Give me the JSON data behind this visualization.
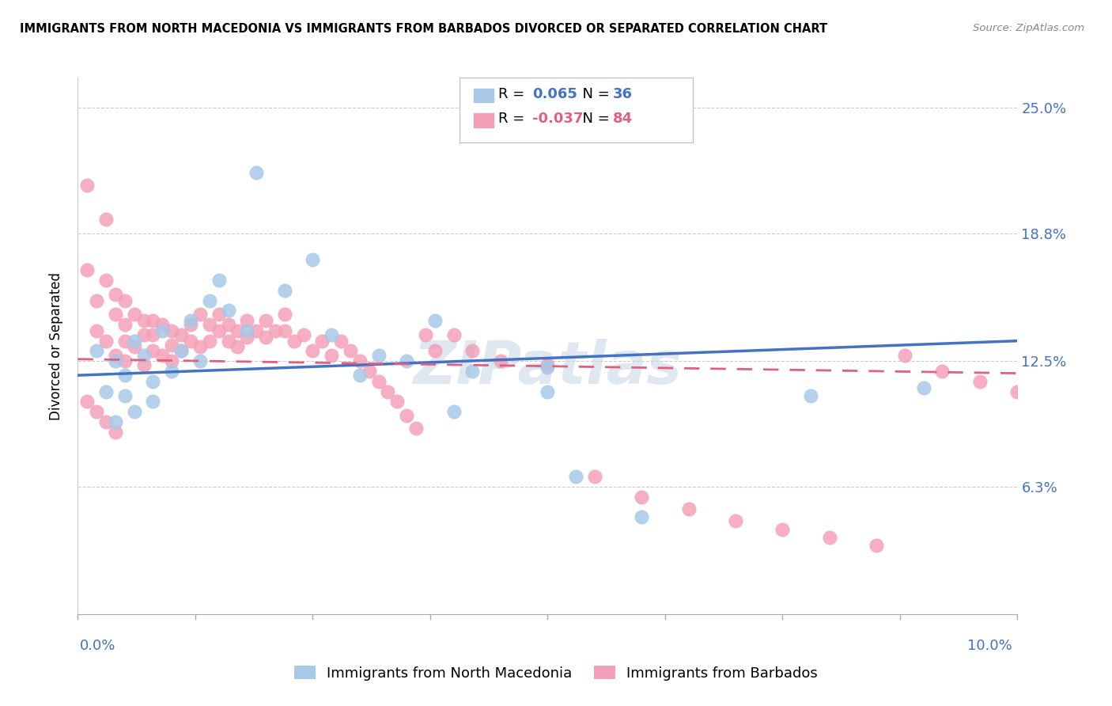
{
  "title": "IMMIGRANTS FROM NORTH MACEDONIA VS IMMIGRANTS FROM BARBADOS DIVORCED OR SEPARATED CORRELATION CHART",
  "source": "Source: ZipAtlas.com",
  "ylabel": "Divorced or Separated",
  "ytick_labels": [
    "25.0%",
    "18.8%",
    "12.5%",
    "6.3%"
  ],
  "ytick_values": [
    0.25,
    0.188,
    0.125,
    0.063
  ],
  "xlim": [
    0.0,
    0.1
  ],
  "ylim": [
    0.0,
    0.265
  ],
  "color_macedonia": "#a8c8e8",
  "color_barbados": "#f4a0b8",
  "line_color_macedonia": "#4472c4",
  "line_color_barbados": "#e06080",
  "label_mac": "Immigrants from North Macedonia",
  "label_bar": "Immigrants from Barbados",
  "watermark": "ZIPatlas",
  "mac_x": [
    0.002,
    0.003,
    0.004,
    0.004,
    0.005,
    0.005,
    0.006,
    0.006,
    0.007,
    0.008,
    0.008,
    0.009,
    0.01,
    0.011,
    0.012,
    0.013,
    0.014,
    0.015,
    0.016,
    0.018,
    0.019,
    0.022,
    0.025,
    0.027,
    0.03,
    0.032,
    0.035,
    0.038,
    0.04,
    0.042,
    0.05,
    0.053,
    0.06,
    0.078,
    0.09,
    0.05
  ],
  "mac_y": [
    0.13,
    0.11,
    0.125,
    0.095,
    0.118,
    0.108,
    0.135,
    0.1,
    0.128,
    0.115,
    0.105,
    0.14,
    0.12,
    0.13,
    0.145,
    0.125,
    0.155,
    0.165,
    0.15,
    0.14,
    0.218,
    0.16,
    0.175,
    0.138,
    0.118,
    0.128,
    0.125,
    0.145,
    0.1,
    0.12,
    0.122,
    0.068,
    0.048,
    0.108,
    0.112,
    0.11
  ],
  "bar_x": [
    0.001,
    0.001,
    0.002,
    0.002,
    0.003,
    0.003,
    0.003,
    0.004,
    0.004,
    0.004,
    0.005,
    0.005,
    0.005,
    0.005,
    0.006,
    0.006,
    0.007,
    0.007,
    0.007,
    0.008,
    0.008,
    0.008,
    0.009,
    0.009,
    0.01,
    0.01,
    0.01,
    0.011,
    0.011,
    0.012,
    0.012,
    0.013,
    0.013,
    0.014,
    0.014,
    0.015,
    0.015,
    0.016,
    0.016,
    0.017,
    0.017,
    0.018,
    0.018,
    0.019,
    0.02,
    0.02,
    0.021,
    0.022,
    0.022,
    0.023,
    0.024,
    0.025,
    0.026,
    0.027,
    0.028,
    0.029,
    0.03,
    0.031,
    0.032,
    0.033,
    0.034,
    0.035,
    0.036,
    0.037,
    0.038,
    0.04,
    0.042,
    0.045,
    0.05,
    0.055,
    0.06,
    0.065,
    0.07,
    0.075,
    0.08,
    0.085,
    0.088,
    0.092,
    0.096,
    0.1,
    0.001,
    0.002,
    0.003,
    0.004
  ],
  "bar_y": [
    0.212,
    0.17,
    0.155,
    0.14,
    0.195,
    0.165,
    0.135,
    0.158,
    0.148,
    0.128,
    0.155,
    0.143,
    0.135,
    0.125,
    0.148,
    0.132,
    0.145,
    0.138,
    0.123,
    0.145,
    0.138,
    0.13,
    0.143,
    0.128,
    0.14,
    0.133,
    0.125,
    0.138,
    0.13,
    0.143,
    0.135,
    0.148,
    0.132,
    0.143,
    0.135,
    0.148,
    0.14,
    0.143,
    0.135,
    0.14,
    0.132,
    0.145,
    0.137,
    0.14,
    0.145,
    0.137,
    0.14,
    0.148,
    0.14,
    0.135,
    0.138,
    0.13,
    0.135,
    0.128,
    0.135,
    0.13,
    0.125,
    0.12,
    0.115,
    0.11,
    0.105,
    0.098,
    0.092,
    0.138,
    0.13,
    0.138,
    0.13,
    0.125,
    0.123,
    0.068,
    0.058,
    0.052,
    0.046,
    0.042,
    0.038,
    0.034,
    0.128,
    0.12,
    0.115,
    0.11,
    0.105,
    0.1,
    0.095,
    0.09
  ]
}
